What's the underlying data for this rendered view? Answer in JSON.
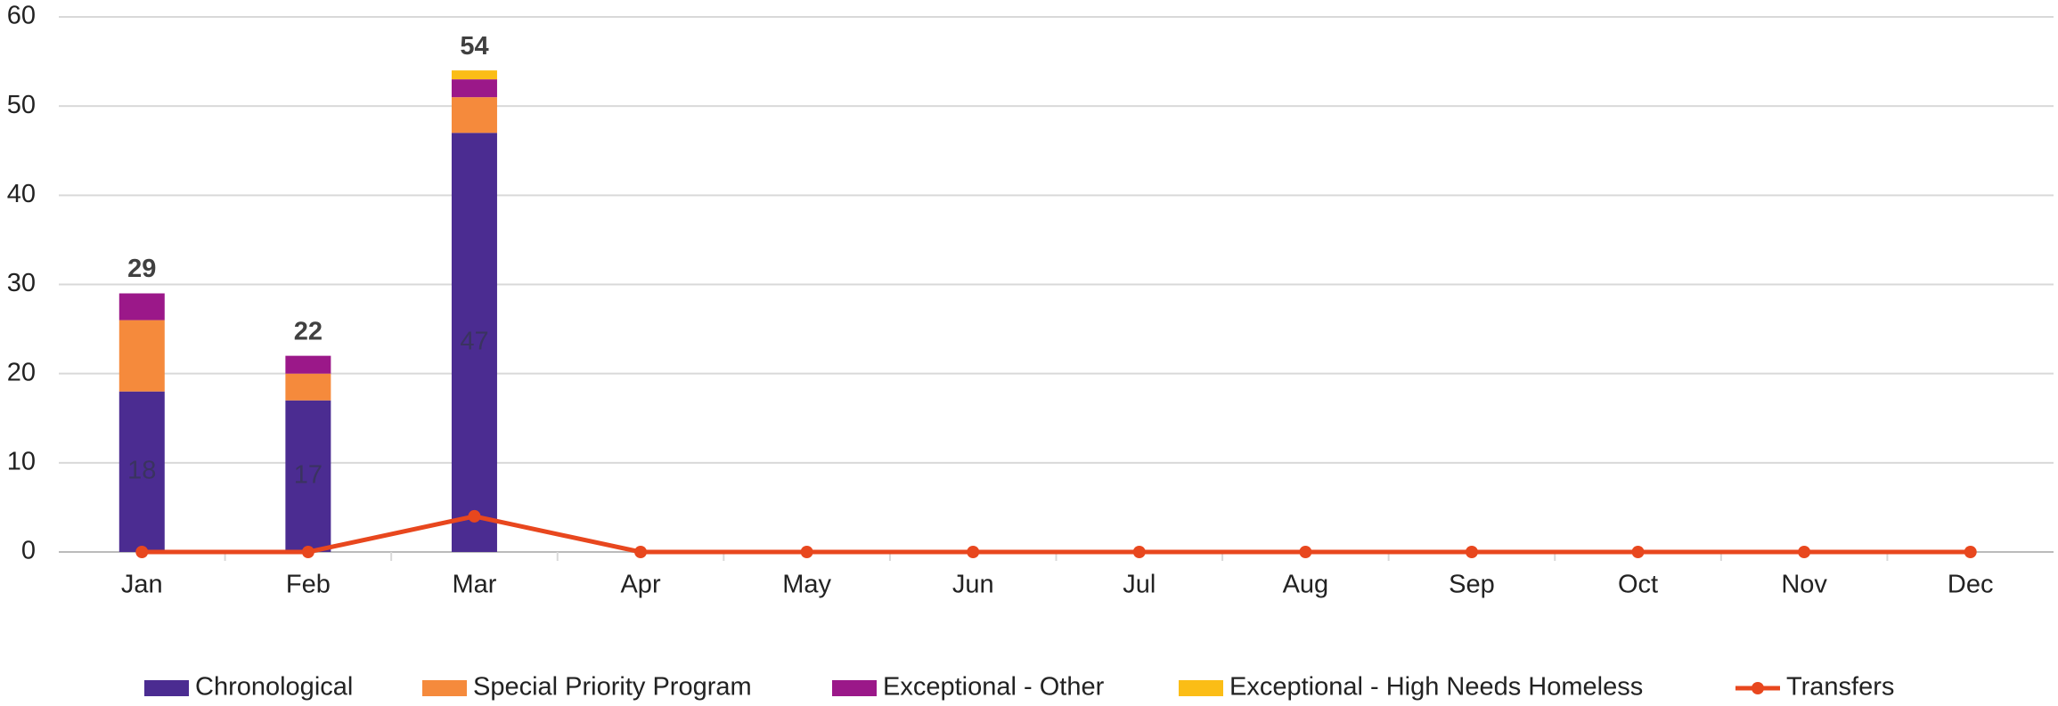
{
  "chart_data": {
    "type": "stacked_bar_line",
    "categories": [
      "Jan",
      "Feb",
      "Mar",
      "Apr",
      "May",
      "Jun",
      "Jul",
      "Aug",
      "Sep",
      "Oct",
      "Nov",
      "Dec"
    ],
    "series": [
      {
        "name": "Chronological",
        "type": "bar",
        "color": "#4b2c91",
        "show_labels": true,
        "values": [
          18,
          17,
          47,
          null,
          null,
          null,
          null,
          null,
          null,
          null,
          null,
          null
        ]
      },
      {
        "name": "Special Priority Program",
        "type": "bar",
        "color": "#f58a3c",
        "values": [
          8,
          3,
          4,
          null,
          null,
          null,
          null,
          null,
          null,
          null,
          null,
          null
        ]
      },
      {
        "name": "Exceptional - Other",
        "type": "bar",
        "color": "#9b1889",
        "values": [
          3,
          2,
          2,
          null,
          null,
          null,
          null,
          null,
          null,
          null,
          null,
          null
        ]
      },
      {
        "name": "Exceptional - High Needs Homeless",
        "type": "bar",
        "color": "#fbbd16",
        "values": [
          0,
          0,
          1,
          null,
          null,
          null,
          null,
          null,
          null,
          null,
          null,
          null
        ]
      },
      {
        "name": "Transfers",
        "type": "line",
        "color": "#e8471e",
        "values": [
          0,
          0,
          4,
          0,
          0,
          0,
          0,
          0,
          0,
          0,
          0,
          0
        ]
      }
    ],
    "totals": [
      29,
      22,
      54
    ],
    "ylim": [
      0,
      60
    ],
    "yticks": [
      0,
      10,
      20,
      30,
      40,
      50,
      60
    ],
    "grid": true,
    "legend": "bottom"
  }
}
